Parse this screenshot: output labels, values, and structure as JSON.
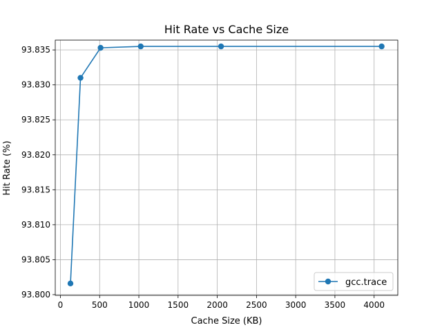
{
  "chart_data": {
    "type": "line",
    "title": "Hit Rate vs Cache Size",
    "xlabel": "Cache Size (KB)",
    "ylabel": "Hit Rate (%)",
    "xlim": [
      -66,
      4302
    ],
    "ylim": [
      93.7999,
      93.8364
    ],
    "xticks": [
      0,
      500,
      1000,
      1500,
      2000,
      2500,
      3000,
      3500,
      4000
    ],
    "xtick_labels": [
      "0",
      "500",
      "1000",
      "1500",
      "2000",
      "2500",
      "3000",
      "3500",
      "4000"
    ],
    "yticks": [
      93.8,
      93.805,
      93.81,
      93.815,
      93.82,
      93.825,
      93.83,
      93.835
    ],
    "ytick_labels": [
      "93.800",
      "93.805",
      "93.810",
      "93.815",
      "93.820",
      "93.825",
      "93.830",
      "93.835"
    ],
    "grid": true,
    "legend_position": "lower-right",
    "series": [
      {
        "name": "gcc.trace",
        "color": "#1f77b4",
        "marker": "circle",
        "x": [
          128,
          256,
          512,
          1024,
          2048,
          4096
        ],
        "y": [
          93.8016,
          93.831,
          93.8353,
          93.8355,
          93.8355,
          93.8355
        ]
      }
    ]
  }
}
